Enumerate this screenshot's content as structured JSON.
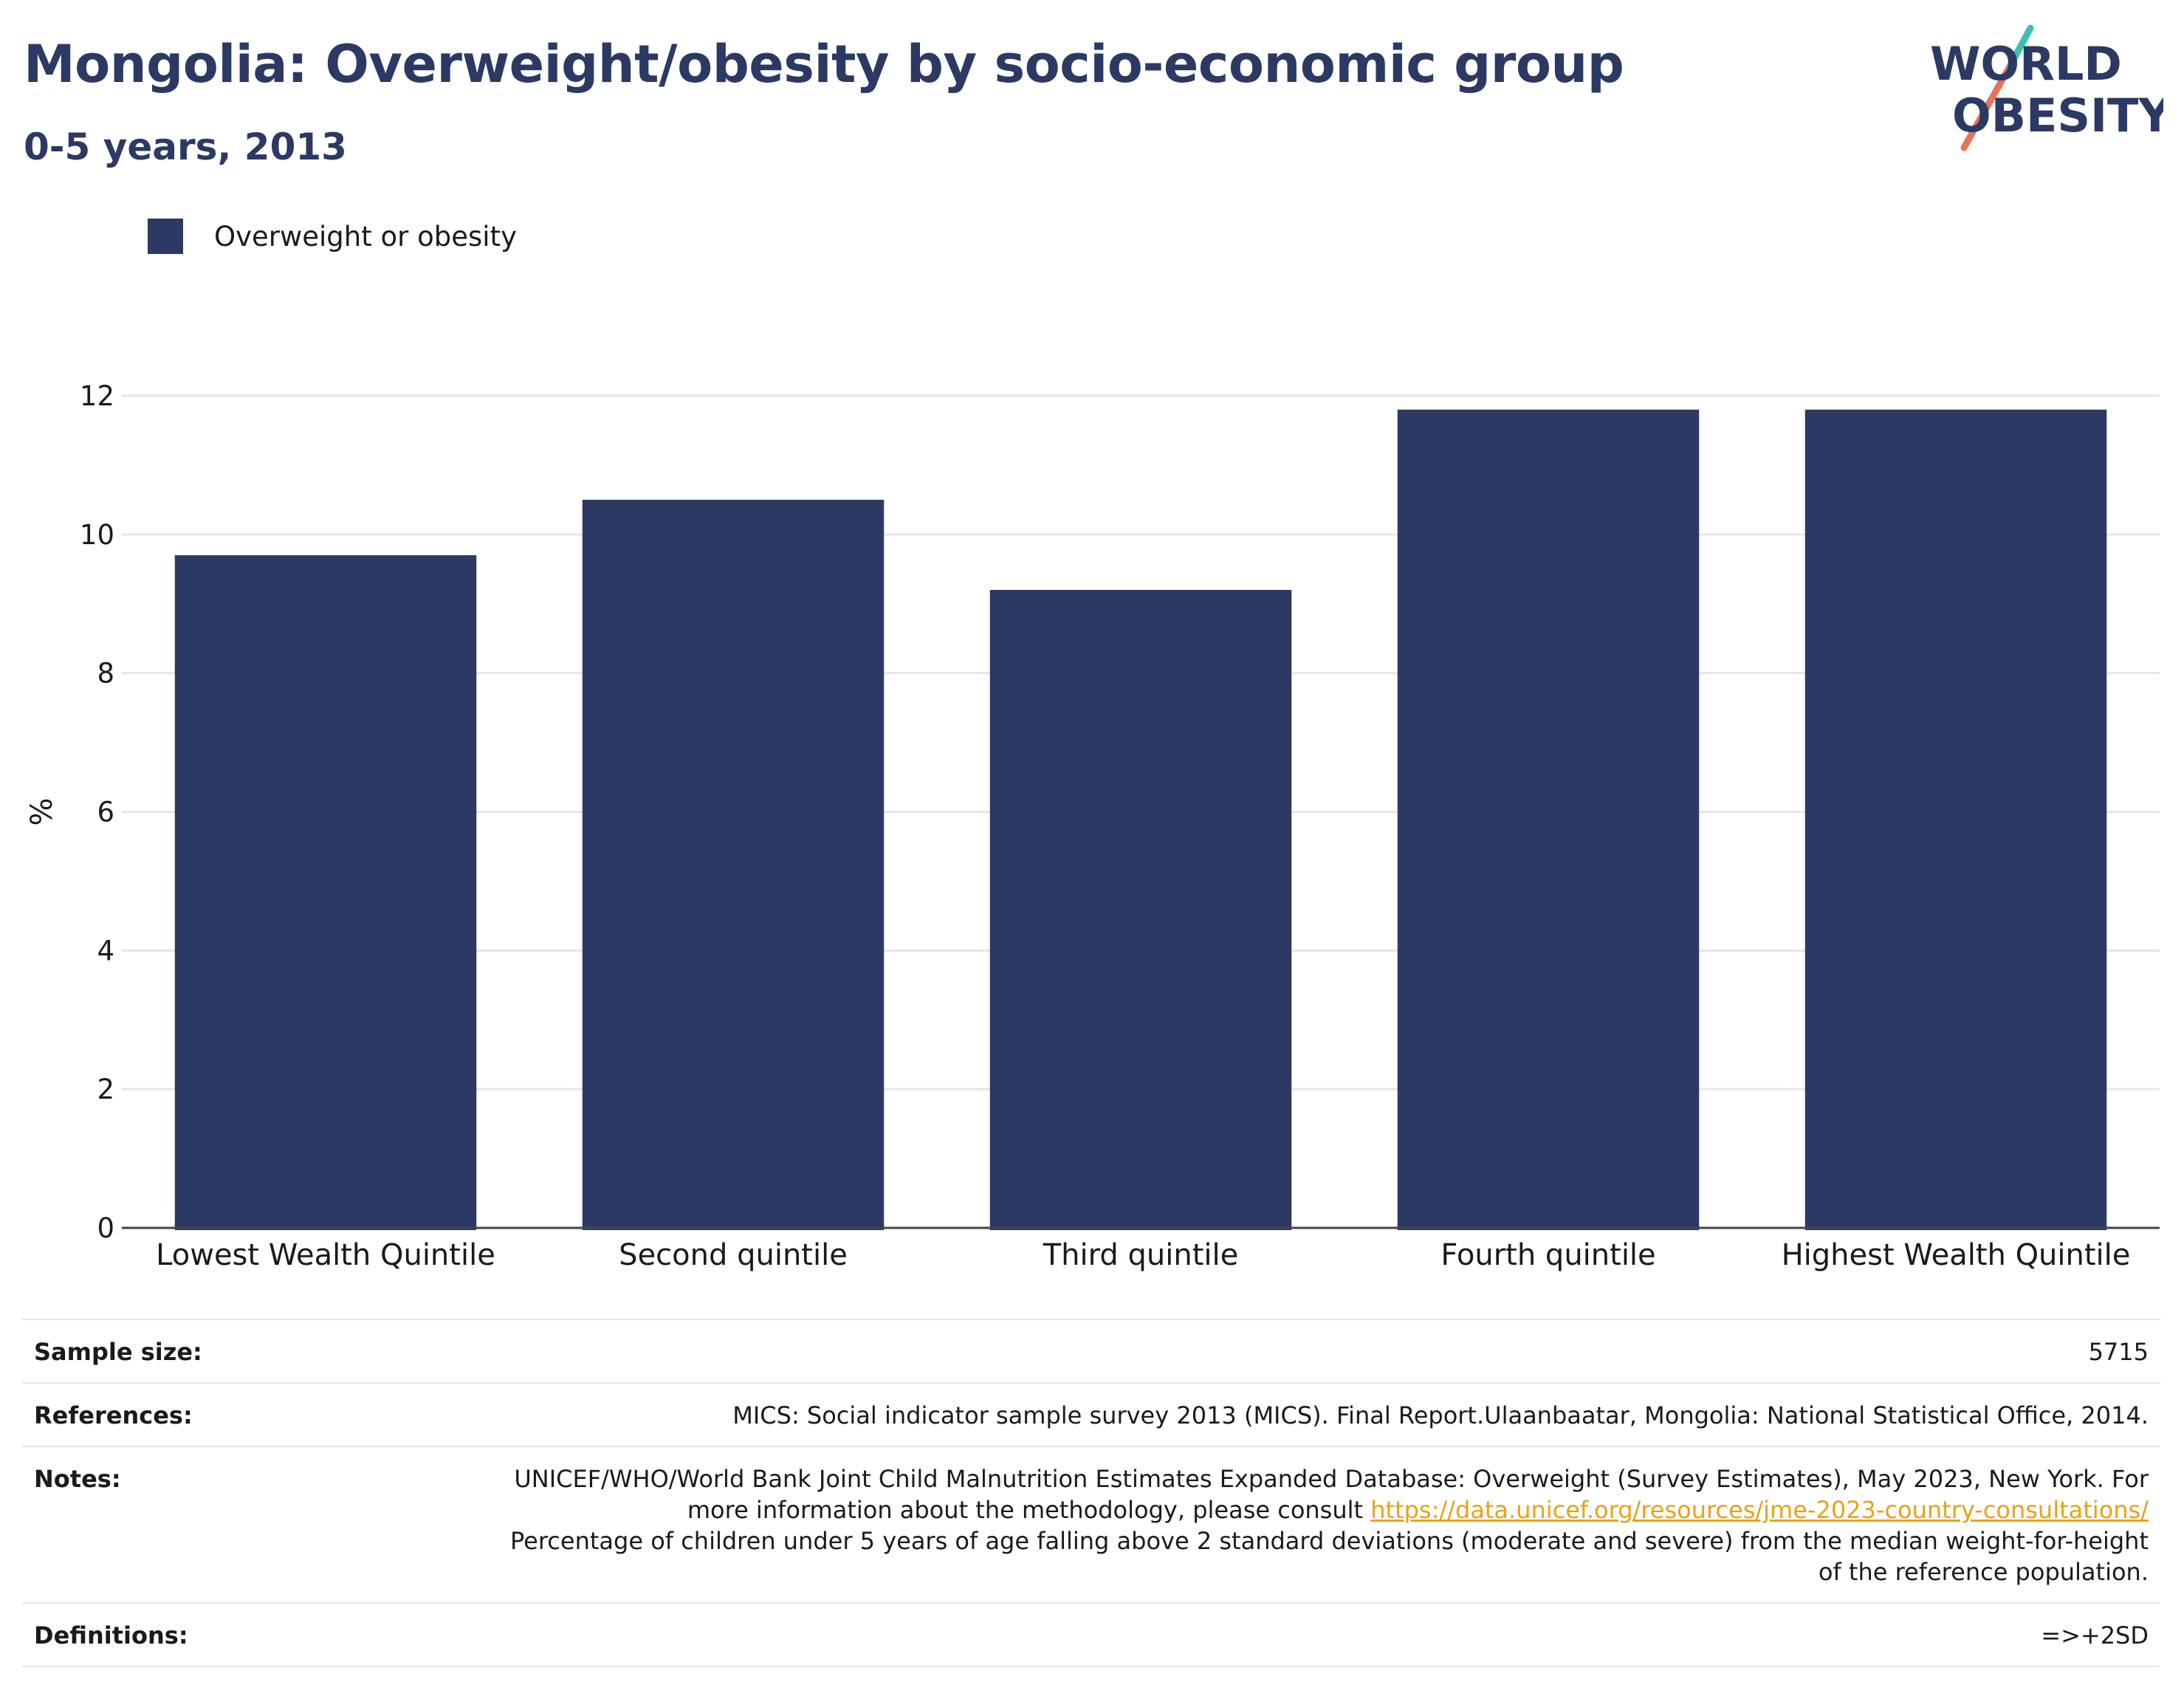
{
  "header": {
    "title": "Mongolia: Overweight/obesity by socio-economic group",
    "subtitle": "0-5 years, 2013"
  },
  "logo": {
    "line1": "WORLD",
    "line2": "OBESITY"
  },
  "legend": {
    "label": "Overweight or obesity",
    "color": "#2b3964"
  },
  "chart_data": {
    "type": "bar",
    "categories": [
      "Lowest Wealth Quintile",
      "Second quintile",
      "Third quintile",
      "Fourth quintile",
      "Highest Wealth Quintile"
    ],
    "series": [
      {
        "name": "Overweight or obesity",
        "values": [
          9.7,
          10.5,
          9.2,
          11.8,
          11.8
        ],
        "color": "#2b3964"
      }
    ],
    "ylabel": "%",
    "xlabel": "",
    "ylim": [
      0,
      12
    ],
    "yticks": [
      0,
      2,
      4,
      6,
      8,
      10,
      12
    ],
    "grid": true,
    "legend_position": "top-left"
  },
  "meta": {
    "sample_label": "Sample size:",
    "sample_value": "5715",
    "references_label": "References:",
    "references_value": "MICS: Social indicator sample survey 2013 (MICS). Final Report.Ulaanbaatar, Mongolia: National Statistical Office, 2014.",
    "notes_label": "Notes:",
    "notes_text1": "UNICEF/WHO/World Bank Joint Child Malnutrition Estimates Expanded Database: Overweight (Survey Estimates), May 2023, New York. For more information about the methodology, please consult ",
    "notes_link": "https://data.unicef.org/resources/jme-2023-country-consultations/",
    "notes_text2": "Percentage of children under 5 years of age falling above 2 standard deviations (moderate and severe) from the median weight-for-height of the reference population.",
    "definitions_label": "Definitions:",
    "definitions_value": "=>+2SD"
  }
}
